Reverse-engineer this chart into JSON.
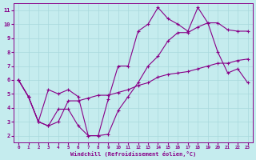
{
  "xlabel": "Windchill (Refroidissement éolien,°C)",
  "background_color": "#c5ecee",
  "grid_color": "#a8d8dc",
  "line_color": "#880088",
  "xlim": [
    -0.5,
    23.5
  ],
  "ylim": [
    1.5,
    11.5
  ],
  "xticks": [
    0,
    1,
    2,
    3,
    4,
    5,
    6,
    7,
    8,
    9,
    10,
    11,
    12,
    13,
    14,
    15,
    16,
    17,
    18,
    19,
    20,
    21,
    22,
    23
  ],
  "yticks": [
    2,
    3,
    4,
    5,
    6,
    7,
    8,
    9,
    10,
    11
  ],
  "series1_x": [
    0,
    1,
    2,
    3,
    4,
    5,
    6,
    7,
    8,
    9,
    10,
    11,
    12,
    13,
    14,
    15,
    16,
    17,
    18,
    19,
    20,
    21,
    22,
    23
  ],
  "series1_y": [
    6.0,
    4.8,
    3.0,
    5.3,
    5.0,
    5.3,
    4.8,
    2.0,
    2.0,
    4.6,
    7.0,
    7.0,
    9.5,
    10.0,
    11.2,
    10.4,
    10.0,
    9.5,
    11.2,
    10.1,
    8.0,
    6.5,
    6.8,
    5.8
  ],
  "series2_x": [
    0,
    1,
    2,
    3,
    4,
    5,
    6,
    7,
    8,
    9,
    10,
    11,
    12,
    13,
    14,
    15,
    16,
    17,
    18,
    19,
    20,
    21,
    22,
    23
  ],
  "series2_y": [
    6.0,
    4.8,
    3.0,
    2.7,
    3.0,
    4.5,
    4.5,
    4.7,
    4.9,
    4.9,
    5.1,
    5.3,
    5.6,
    5.8,
    6.2,
    6.4,
    6.5,
    6.6,
    6.8,
    7.0,
    7.2,
    7.2,
    7.4,
    7.5
  ],
  "series3_x": [
    0,
    1,
    2,
    3,
    4,
    5,
    6,
    7,
    8,
    9,
    10,
    11,
    12,
    13,
    14,
    15,
    16,
    17,
    18,
    19,
    20,
    21,
    22,
    23
  ],
  "series3_y": [
    6.0,
    4.8,
    3.0,
    2.7,
    3.9,
    3.9,
    2.7,
    2.0,
    2.0,
    2.1,
    3.8,
    4.8,
    5.8,
    7.0,
    7.7,
    8.8,
    9.4,
    9.4,
    9.8,
    10.1,
    10.1,
    9.6,
    9.5,
    9.5
  ]
}
